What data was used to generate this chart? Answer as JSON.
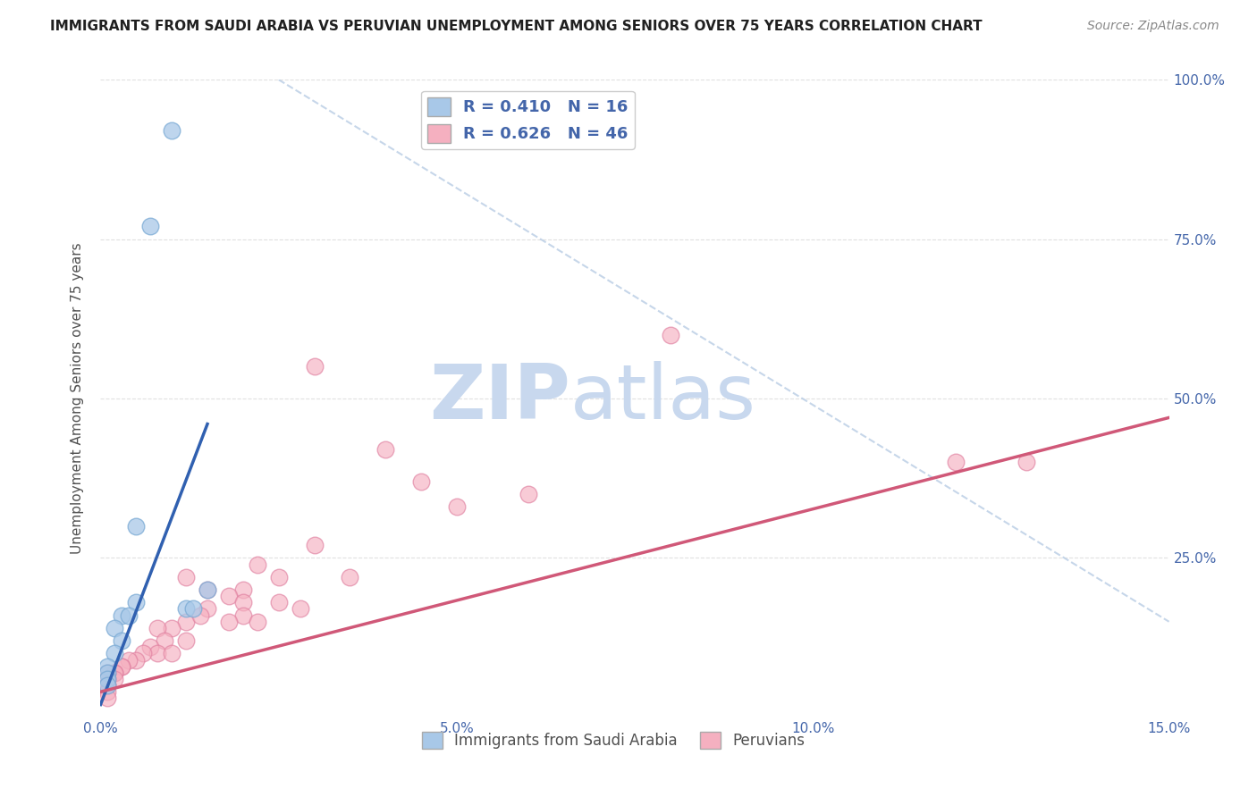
{
  "title": "IMMIGRANTS FROM SAUDI ARABIA VS PERUVIAN UNEMPLOYMENT AMONG SENIORS OVER 75 YEARS CORRELATION CHART",
  "source": "Source: ZipAtlas.com",
  "ylabel": "Unemployment Among Seniors over 75 years",
  "xlabel": "",
  "xlim": [
    0,
    0.15
  ],
  "ylim": [
    0,
    1.0
  ],
  "xticks": [
    0.0,
    0.05,
    0.1,
    0.15
  ],
  "yticks": [
    0.0,
    0.25,
    0.5,
    0.75,
    1.0
  ],
  "ytick_labels": [
    "",
    "25.0%",
    "50.0%",
    "75.0%",
    "100.0%"
  ],
  "xtick_labels": [
    "0.0%",
    "5.0%",
    "10.0%",
    "15.0%"
  ],
  "legend_entries": [
    {
      "label": "R = 0.410   N = 16",
      "color": "#aec6e8"
    },
    {
      "label": "R = 0.626   N = 46",
      "color": "#f4a0b0"
    }
  ],
  "bottom_legend": [
    {
      "label": "Immigrants from Saudi Arabia",
      "color": "#aec6e8"
    },
    {
      "label": "Peruvians",
      "color": "#f4a0b0"
    }
  ],
  "watermark_zip": "ZIP",
  "watermark_atlas": "atlas",
  "watermark_color": "#c8d8ee",
  "blue_scatter": [
    [
      0.01,
      0.92
    ],
    [
      0.007,
      0.77
    ],
    [
      0.005,
      0.3
    ],
    [
      0.015,
      0.2
    ],
    [
      0.005,
      0.18
    ],
    [
      0.003,
      0.16
    ],
    [
      0.004,
      0.16
    ],
    [
      0.012,
      0.17
    ],
    [
      0.013,
      0.17
    ],
    [
      0.002,
      0.14
    ],
    [
      0.003,
      0.12
    ],
    [
      0.002,
      0.1
    ],
    [
      0.001,
      0.08
    ],
    [
      0.001,
      0.07
    ],
    [
      0.001,
      0.06
    ],
    [
      0.001,
      0.05
    ]
  ],
  "pink_scatter": [
    [
      0.03,
      0.55
    ],
    [
      0.08,
      0.6
    ],
    [
      0.04,
      0.42
    ],
    [
      0.045,
      0.37
    ],
    [
      0.05,
      0.33
    ],
    [
      0.06,
      0.35
    ],
    [
      0.12,
      0.4
    ],
    [
      0.13,
      0.4
    ],
    [
      0.03,
      0.27
    ],
    [
      0.025,
      0.22
    ],
    [
      0.022,
      0.24
    ],
    [
      0.035,
      0.22
    ],
    [
      0.02,
      0.2
    ],
    [
      0.012,
      0.22
    ],
    [
      0.015,
      0.2
    ],
    [
      0.018,
      0.19
    ],
    [
      0.02,
      0.18
    ],
    [
      0.015,
      0.17
    ],
    [
      0.025,
      0.18
    ],
    [
      0.028,
      0.17
    ],
    [
      0.012,
      0.15
    ],
    [
      0.014,
      0.16
    ],
    [
      0.02,
      0.16
    ],
    [
      0.018,
      0.15
    ],
    [
      0.022,
      0.15
    ],
    [
      0.01,
      0.14
    ],
    [
      0.008,
      0.14
    ],
    [
      0.009,
      0.12
    ],
    [
      0.012,
      0.12
    ],
    [
      0.007,
      0.11
    ],
    [
      0.008,
      0.1
    ],
    [
      0.01,
      0.1
    ],
    [
      0.006,
      0.1
    ],
    [
      0.005,
      0.09
    ],
    [
      0.004,
      0.09
    ],
    [
      0.003,
      0.08
    ],
    [
      0.003,
      0.08
    ],
    [
      0.002,
      0.07
    ],
    [
      0.002,
      0.07
    ],
    [
      0.002,
      0.06
    ],
    [
      0.001,
      0.07
    ],
    [
      0.001,
      0.06
    ],
    [
      0.001,
      0.05
    ],
    [
      0.001,
      0.05
    ],
    [
      0.001,
      0.04
    ],
    [
      0.001,
      0.03
    ]
  ],
  "blue_line_x": [
    0.0,
    0.015
  ],
  "blue_line_y": [
    0.02,
    0.46
  ],
  "pink_line_x": [
    0.0,
    0.15
  ],
  "pink_line_y": [
    0.04,
    0.47
  ],
  "ref_line_x": [
    0.025,
    0.15
  ],
  "ref_line_y": [
    1.0,
    0.15
  ],
  "blue_color": "#a8c8e8",
  "pink_color": "#f5b0c0",
  "blue_edge": "#7aaad4",
  "pink_edge": "#e080a0",
  "blue_line_color": "#3060b0",
  "pink_line_color": "#d05878",
  "ref_line_color": "#b8cce4",
  "background_color": "#ffffff",
  "grid_color": "#e0e0e0",
  "axis_label_color": "#505050",
  "title_color": "#202020",
  "tick_color": "#4466aa"
}
